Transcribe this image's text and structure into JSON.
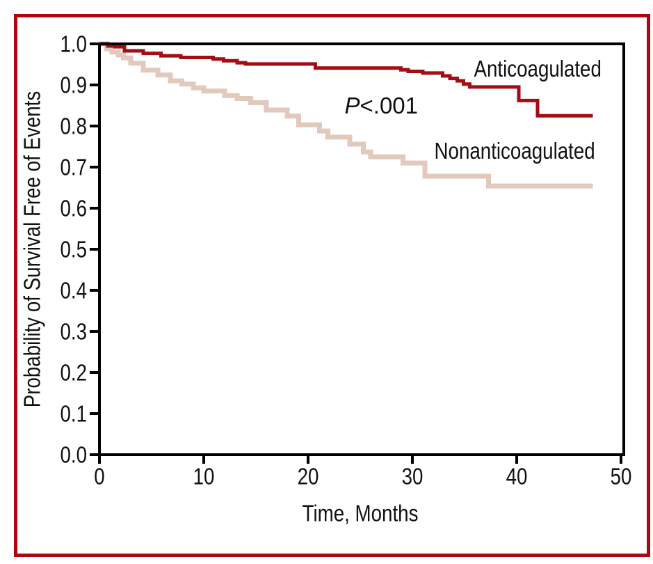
{
  "figure": {
    "border_color": "#AE0511",
    "background_color": "#FFFFFF",
    "axis_color": "#000000",
    "text_color": "#111111"
  },
  "chart_data": {
    "type": "line",
    "variant": "kaplan-meier-step",
    "title": "",
    "xlabel": "Time, Months",
    "ylabel": "Probability of Survival Free of Events",
    "xlim": [
      0,
      50
    ],
    "ylim": [
      0.0,
      1.0
    ],
    "x_ticks": [
      0,
      10,
      20,
      30,
      40,
      50
    ],
    "y_ticks": [
      "0.0",
      "0.1",
      "0.2",
      "0.3",
      "0.4",
      "0.5",
      "0.6",
      "0.7",
      "0.8",
      "0.9",
      "1.0"
    ],
    "grid": false,
    "legend_position": "inline-labels",
    "p_annotation": {
      "prefix": "P",
      "rest": "<.001",
      "x": 23.5,
      "y": 0.851
    },
    "series": [
      {
        "name": "Anticoagulated",
        "color": "#A30E13",
        "label_pos": {
          "x": 35.9,
          "y": 0.94
        },
        "points": [
          [
            0,
            1.0
          ],
          [
            0.8,
            0.995
          ],
          [
            1.5,
            0.993
          ],
          [
            2.4,
            0.983
          ],
          [
            4.2,
            0.977
          ],
          [
            5.9,
            0.971
          ],
          [
            7.8,
            0.967
          ],
          [
            10.9,
            0.963
          ],
          [
            11.9,
            0.959
          ],
          [
            13.2,
            0.954
          ],
          [
            14.0,
            0.951
          ],
          [
            20.7,
            0.941
          ],
          [
            28.9,
            0.937
          ],
          [
            29.6,
            0.933
          ],
          [
            31.0,
            0.929
          ],
          [
            32.9,
            0.922
          ],
          [
            33.6,
            0.916
          ],
          [
            34.3,
            0.91
          ],
          [
            34.9,
            0.902
          ],
          [
            35.5,
            0.895
          ],
          [
            40.2,
            0.862
          ],
          [
            42.0,
            0.825
          ],
          [
            47.3,
            0.825
          ]
        ]
      },
      {
        "name": "Nonanticoagulated",
        "color": "#E2C9BB",
        "label_pos": {
          "x": 32.1,
          "y": 0.74
        },
        "points": [
          [
            0,
            1.0
          ],
          [
            0.7,
            0.988
          ],
          [
            1.2,
            0.98
          ],
          [
            1.8,
            0.973
          ],
          [
            2.3,
            0.966
          ],
          [
            3.0,
            0.953
          ],
          [
            4.2,
            0.936
          ],
          [
            5.6,
            0.924
          ],
          [
            6.8,
            0.91
          ],
          [
            7.9,
            0.902
          ],
          [
            9.0,
            0.893
          ],
          [
            10.0,
            0.885
          ],
          [
            12.0,
            0.874
          ],
          [
            13.2,
            0.867
          ],
          [
            14.5,
            0.857
          ],
          [
            16.0,
            0.839
          ],
          [
            18.0,
            0.824
          ],
          [
            19.1,
            0.803
          ],
          [
            21.1,
            0.788
          ],
          [
            21.9,
            0.773
          ],
          [
            24.0,
            0.756
          ],
          [
            25.3,
            0.737
          ],
          [
            26.0,
            0.725
          ],
          [
            29.1,
            0.71
          ],
          [
            31.2,
            0.678
          ],
          [
            37.3,
            0.654
          ],
          [
            47.3,
            0.654
          ]
        ]
      }
    ]
  }
}
